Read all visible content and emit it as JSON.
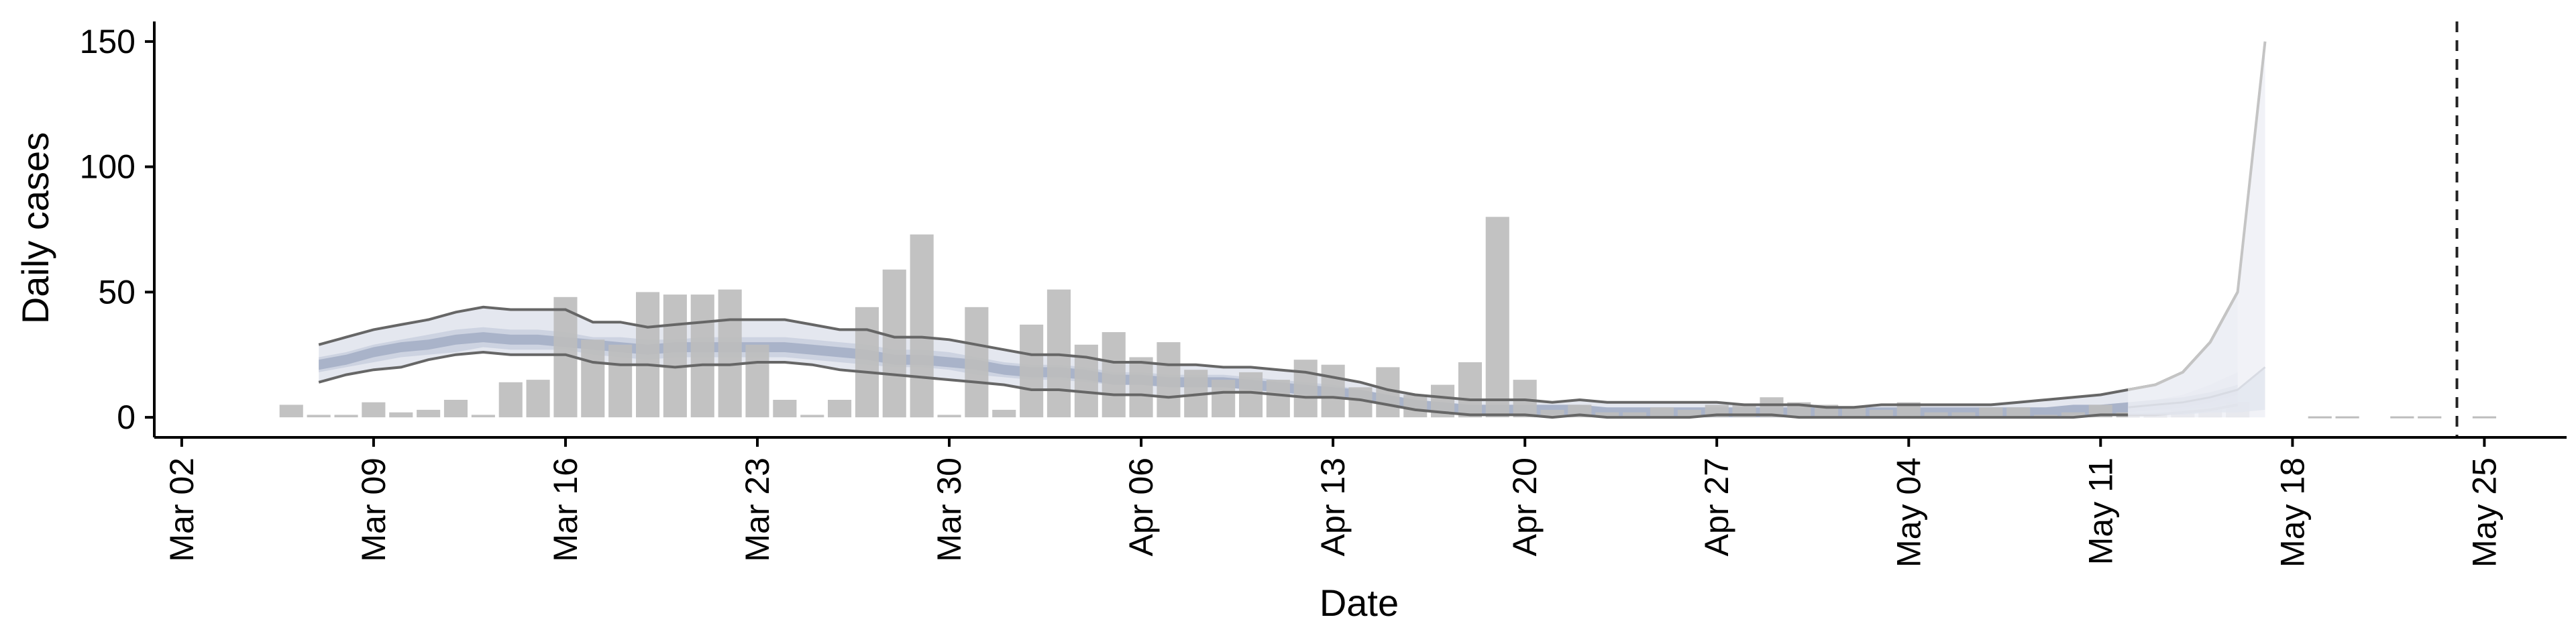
{
  "chart_data": {
    "type": "bar",
    "title": "",
    "xlabel": "Date",
    "ylabel": "Daily cases",
    "x_range": [
      "2020-03-01",
      "2020-05-28"
    ],
    "ylim": [
      -8,
      158
    ],
    "x_ticks": [
      {
        "date": "2020-03-02",
        "label": "Mar 02"
      },
      {
        "date": "2020-03-09",
        "label": "Mar 09"
      },
      {
        "date": "2020-03-16",
        "label": "Mar 16"
      },
      {
        "date": "2020-03-23",
        "label": "Mar 23"
      },
      {
        "date": "2020-03-30",
        "label": "Mar 30"
      },
      {
        "date": "2020-04-06",
        "label": "Apr 06"
      },
      {
        "date": "2020-04-13",
        "label": "Apr 13"
      },
      {
        "date": "2020-04-20",
        "label": "Apr 20"
      },
      {
        "date": "2020-04-27",
        "label": "Apr 27"
      },
      {
        "date": "2020-05-04",
        "label": "May 04"
      },
      {
        "date": "2020-05-11",
        "label": "May 11"
      },
      {
        "date": "2020-05-18",
        "label": "May 18"
      },
      {
        "date": "2020-05-25",
        "label": "May 25"
      }
    ],
    "y_ticks": [
      0,
      50,
      100,
      150
    ],
    "grid": false,
    "legend": "none",
    "cutoff_date": "2020-05-24",
    "colors": {
      "bars": "#bdbdbd",
      "band_outer": "#e4e7ef",
      "band_mid": "#cdd3e1",
      "band_inner": "#a9b3c9",
      "interval_lines": "#666666",
      "forecast_lines": "#c4c4c4",
      "forecast_band": "#eef0f6",
      "cutoff_line": "#222222",
      "axes": "#000000"
    },
    "observed_cases": {
      "dates": [
        "2020-03-06",
        "2020-03-07",
        "2020-03-08",
        "2020-03-09",
        "2020-03-10",
        "2020-03-11",
        "2020-03-12",
        "2020-03-13",
        "2020-03-14",
        "2020-03-15",
        "2020-03-16",
        "2020-03-17",
        "2020-03-18",
        "2020-03-19",
        "2020-03-20",
        "2020-03-21",
        "2020-03-22",
        "2020-03-23",
        "2020-03-24",
        "2020-03-25",
        "2020-03-26",
        "2020-03-27",
        "2020-03-28",
        "2020-03-29",
        "2020-03-30",
        "2020-03-31",
        "2020-04-01",
        "2020-04-02",
        "2020-04-03",
        "2020-04-04",
        "2020-04-05",
        "2020-04-06",
        "2020-04-07",
        "2020-04-08",
        "2020-04-09",
        "2020-04-10",
        "2020-04-11",
        "2020-04-12",
        "2020-04-13",
        "2020-04-14",
        "2020-04-15",
        "2020-04-16",
        "2020-04-17",
        "2020-04-18",
        "2020-04-19",
        "2020-04-20",
        "2020-04-21",
        "2020-04-22",
        "2020-04-23",
        "2020-04-24",
        "2020-04-25",
        "2020-04-26",
        "2020-04-27",
        "2020-04-28",
        "2020-04-29",
        "2020-04-30",
        "2020-05-01",
        "2020-05-02",
        "2020-05-03",
        "2020-05-04",
        "2020-05-05",
        "2020-05-06",
        "2020-05-07",
        "2020-05-08",
        "2020-05-09",
        "2020-05-10",
        "2020-05-11",
        "2020-05-12",
        "2020-05-13",
        "2020-05-14",
        "2020-05-15",
        "2020-05-16"
      ],
      "values": [
        5,
        1,
        1,
        6,
        2,
        3,
        7,
        1,
        14,
        15,
        48,
        31,
        29,
        50,
        49,
        49,
        51,
        29,
        7,
        1,
        7,
        44,
        59,
        73,
        1,
        44,
        3,
        37,
        51,
        29,
        34,
        24,
        30,
        19,
        15,
        18,
        15,
        23,
        21,
        12,
        20,
        9,
        13,
        22,
        80,
        15,
        3,
        5,
        2,
        2,
        4,
        3,
        5,
        5,
        8,
        6,
        5,
        4,
        3,
        6,
        2,
        2,
        4,
        4,
        1,
        2,
        5,
        2,
        2,
        3,
        3,
        6
      ]
    },
    "nowcast": {
      "dates": [
        "2020-03-07",
        "2020-03-08",
        "2020-03-09",
        "2020-03-10",
        "2020-03-11",
        "2020-03-12",
        "2020-03-13",
        "2020-03-14",
        "2020-03-15",
        "2020-03-16",
        "2020-03-17",
        "2020-03-18",
        "2020-03-19",
        "2020-03-20",
        "2020-03-21",
        "2020-03-22",
        "2020-03-23",
        "2020-03-24",
        "2020-03-25",
        "2020-03-26",
        "2020-03-27",
        "2020-03-28",
        "2020-03-29",
        "2020-03-30",
        "2020-03-31",
        "2020-04-01",
        "2020-04-02",
        "2020-04-03",
        "2020-04-04",
        "2020-04-05",
        "2020-04-06",
        "2020-04-07",
        "2020-04-08",
        "2020-04-09",
        "2020-04-10",
        "2020-04-11",
        "2020-04-12",
        "2020-04-13",
        "2020-04-14",
        "2020-04-15",
        "2020-04-16",
        "2020-04-17",
        "2020-04-18",
        "2020-04-19",
        "2020-04-20",
        "2020-04-21",
        "2020-04-22",
        "2020-04-23",
        "2020-04-24",
        "2020-04-25",
        "2020-04-26",
        "2020-04-27",
        "2020-04-28",
        "2020-04-29",
        "2020-04-30",
        "2020-05-01",
        "2020-05-02",
        "2020-05-03",
        "2020-05-04",
        "2020-05-05",
        "2020-05-06",
        "2020-05-07",
        "2020-05-08",
        "2020-05-09",
        "2020-05-10",
        "2020-05-11",
        "2020-05-12",
        "2020-05-13",
        "2020-05-14",
        "2020-05-15",
        "2020-05-16"
      ],
      "upper_90": [
        29,
        32,
        35,
        37,
        39,
        42,
        44,
        43,
        43,
        43,
        38,
        38,
        36,
        37,
        38,
        39,
        39,
        39,
        37,
        35,
        35,
        32,
        32,
        31,
        29,
        27,
        25,
        25,
        24,
        22,
        22,
        21,
        21,
        20,
        20,
        19,
        18,
        16,
        14,
        11,
        9,
        8,
        7,
        7,
        7,
        6,
        7,
        6,
        6,
        6,
        6,
        6,
        5,
        5,
        5,
        4,
        4,
        5,
        5,
        5,
        5,
        5,
        6,
        7,
        8,
        9,
        11,
        13,
        18,
        30,
        50
      ],
      "upper_50": [
        24,
        26,
        29,
        31,
        33,
        35,
        36,
        35,
        35,
        34,
        32,
        32,
        31,
        31,
        32,
        32,
        32,
        32,
        31,
        30,
        29,
        27,
        27,
        26,
        24,
        22,
        21,
        21,
        20,
        18,
        18,
        17,
        17,
        17,
        16,
        15,
        14,
        13,
        11,
        9,
        7,
        6,
        5,
        5,
        5,
        4,
        4,
        4,
        4,
        4,
        4,
        4,
        3,
        3,
        3,
        3,
        3,
        3,
        3,
        3,
        3,
        3,
        4,
        4,
        4,
        5,
        6,
        7,
        9,
        13,
        18
      ],
      "median": [
        21,
        23,
        26,
        28,
        29,
        31,
        32,
        31,
        31,
        30,
        29,
        28,
        27,
        28,
        28,
        28,
        28,
        28,
        27,
        26,
        25,
        23,
        23,
        22,
        21,
        19,
        18,
        18,
        17,
        15,
        15,
        14,
        14,
        14,
        13,
        12,
        11,
        10,
        9,
        7,
        5,
        4,
        3,
        3,
        3,
        3,
        3,
        2,
        2,
        2,
        2,
        2,
        2,
        2,
        2,
        2,
        2,
        2,
        2,
        2,
        2,
        2,
        2,
        2,
        3,
        3,
        4,
        5,
        6,
        8,
        11
      ],
      "lower_50": [
        18,
        20,
        22,
        24,
        25,
        26,
        28,
        27,
        27,
        27,
        25,
        24,
        23,
        24,
        24,
        24,
        24,
        24,
        23,
        22,
        21,
        20,
        20,
        19,
        17,
        16,
        15,
        15,
        14,
        13,
        13,
        12,
        12,
        12,
        11,
        10,
        9,
        8,
        7,
        5,
        4,
        3,
        2,
        2,
        2,
        2,
        2,
        1,
        1,
        1,
        1,
        1,
        1,
        1,
        1,
        1,
        1,
        1,
        1,
        1,
        1,
        1,
        1,
        1,
        1,
        2,
        2,
        3,
        3,
        4,
        6
      ],
      "lower_90": [
        14,
        17,
        19,
        20,
        23,
        25,
        26,
        25,
        25,
        25,
        22,
        21,
        21,
        20,
        21,
        21,
        22,
        22,
        21,
        19,
        18,
        17,
        16,
        15,
        14,
        13,
        11,
        11,
        10,
        9,
        9,
        8,
        9,
        10,
        10,
        9,
        8,
        8,
        7,
        5,
        3,
        2,
        1,
        1,
        1,
        0,
        1,
        0,
        0,
        0,
        0,
        1,
        1,
        1,
        0,
        0,
        0,
        0,
        0,
        0,
        0,
        0,
        0,
        0,
        0,
        1,
        1,
        1,
        2,
        3,
        5
      ]
    },
    "forecast": {
      "dates": [
        "2020-05-12",
        "2020-05-13",
        "2020-05-14",
        "2020-05-15",
        "2020-05-16",
        "2020-05-17"
      ],
      "upper_90": [
        11,
        13,
        18,
        30,
        50,
        150
      ],
      "upper_50": [
        4,
        5,
        6,
        8,
        11,
        20
      ],
      "median": [
        2,
        2,
        3,
        4,
        5,
        9
      ],
      "lower_50": [
        1,
        1,
        1,
        2,
        2,
        3
      ],
      "lower_90": [
        0,
        0,
        0,
        0,
        0,
        0
      ]
    },
    "late_reports": {
      "dates": [
        "2020-05-19",
        "2020-05-20",
        "2020-05-22",
        "2020-05-23",
        "2020-05-25"
      ],
      "values": [
        0,
        0,
        0,
        0,
        0
      ]
    }
  }
}
